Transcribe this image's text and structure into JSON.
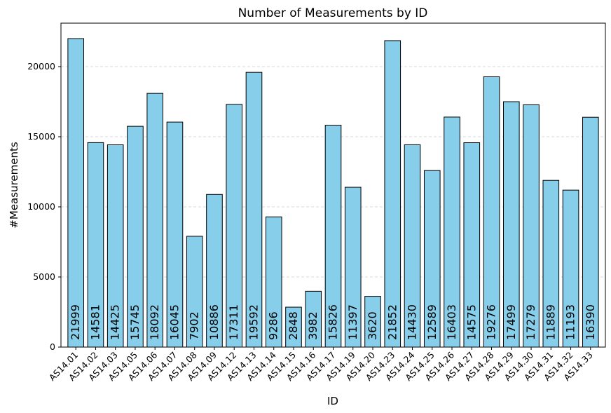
{
  "chart_data": {
    "type": "bar",
    "title": "Number of Measurements by ID",
    "xlabel": "ID",
    "ylabel": "#Measurements",
    "categories": [
      "AS14.01",
      "AS14.02",
      "AS14.03",
      "AS14.05",
      "AS14.06",
      "AS14.07",
      "AS14.08",
      "AS14.09",
      "AS14.12",
      "AS14.13",
      "AS14.14",
      "AS14.15",
      "AS14.16",
      "AS14.17",
      "AS14.19",
      "AS14.20",
      "AS14.23",
      "AS14.24",
      "AS14.25",
      "AS14.26",
      "AS14.27",
      "AS14.28",
      "AS14.29",
      "AS14.30",
      "AS14.31",
      "AS14.32",
      "AS14.33"
    ],
    "values": [
      21999,
      14581,
      14425,
      15745,
      18092,
      16045,
      7902,
      10886,
      17311,
      19592,
      9286,
      2848,
      3982,
      15826,
      11397,
      3620,
      21852,
      14430,
      12589,
      16403,
      14575,
      19276,
      17499,
      17279,
      11889,
      11193,
      16390
    ],
    "bar_labels": [
      "21999",
      "14581",
      "14425",
      "15745",
      "18092",
      "16045",
      "7902",
      "10886",
      "17311",
      "19592",
      "9286",
      "2848",
      "3982",
      "15826",
      "11397",
      "3620",
      "21852",
      "14430",
      "12589",
      "16403",
      "14575",
      "19276",
      "17499",
      "17279",
      "11889",
      "11193",
      "16390"
    ],
    "ylim": [
      0,
      23100
    ],
    "yticks": [
      0,
      5000,
      10000,
      15000,
      20000
    ],
    "ytick_labels": [
      "0",
      "5000",
      "10000",
      "15000",
      "20000"
    ],
    "grid": "y-dashed",
    "bar_color": "#87CEEB",
    "bar_edge_color": "#000000",
    "grid_color": "#cccccc"
  }
}
